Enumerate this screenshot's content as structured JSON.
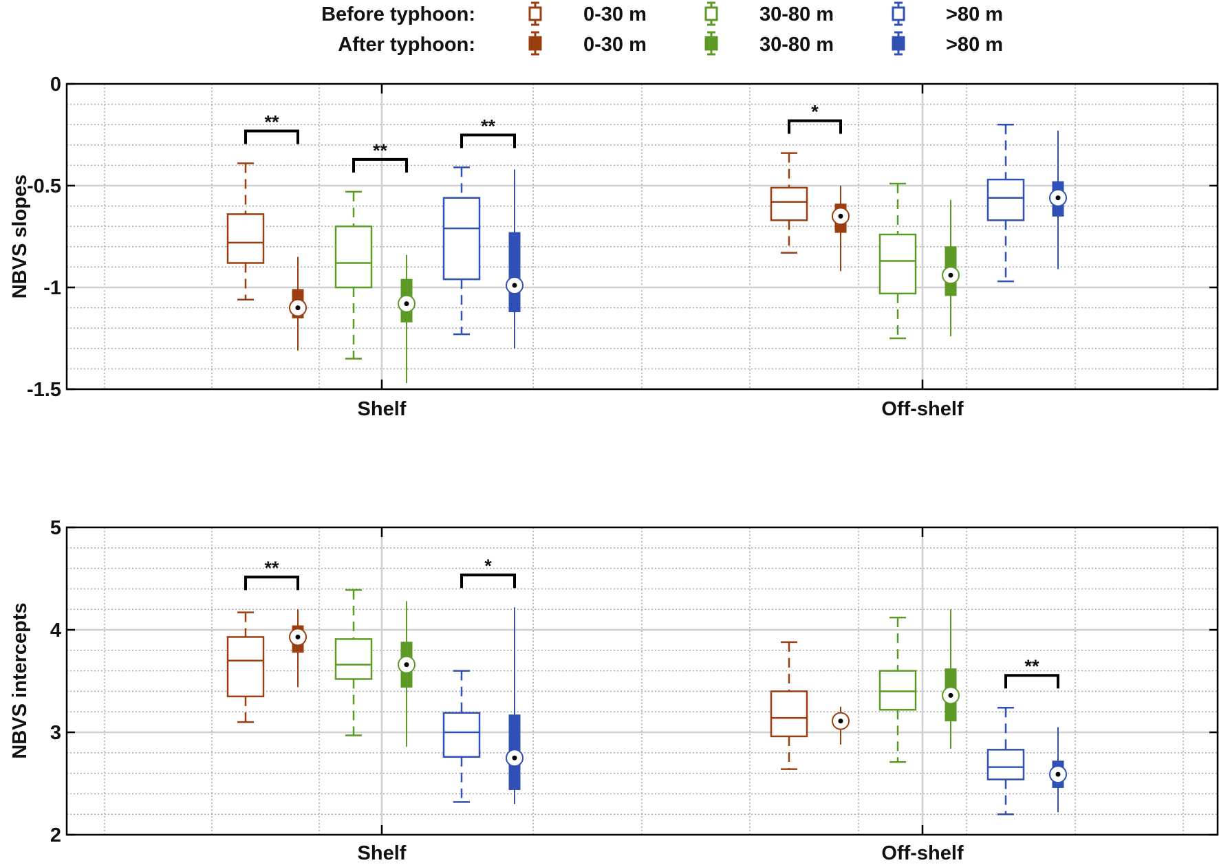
{
  "colors": {
    "d0_30": "#9a3e10",
    "d30_80": "#5c9a25",
    "d80": "#3150b5",
    "axis": "#000000",
    "grid_major": "#cfcfcf",
    "grid_minor": "#a8a8a8",
    "bracket": "#000000"
  },
  "legend": {
    "before_label": "Before typhoon:",
    "after_label": "After typhoon:",
    "items": [
      {
        "key": "d0_30",
        "label": "0-30 m"
      },
      {
        "key": "d30_80",
        "label": "30-80 m"
      },
      {
        "key": "d80",
        "label": ">80 m"
      }
    ]
  },
  "chart_data": [
    {
      "type": "box",
      "name": "slopes",
      "ylabel": "NBVS slopes",
      "ylim": [
        -1.5,
        0
      ],
      "yticks": [
        0,
        -0.5,
        -1,
        -1.5
      ],
      "ytick_labels": [
        "0",
        "-0.5",
        "-1",
        "-1.5"
      ],
      "categories": [
        "Shelf",
        "Off-shelf"
      ],
      "groups": [
        {
          "region": "Shelf",
          "depth": "0-30 m",
          "period": "Before typhoon",
          "color": "d0_30",
          "whisker_low": -1.06,
          "q1": -0.88,
          "median": -0.78,
          "q3": -0.64,
          "whisker_high": -0.39
        },
        {
          "region": "Shelf",
          "depth": "0-30 m",
          "period": "After typhoon",
          "color": "d0_30",
          "whisker_low": -1.31,
          "q1": -1.15,
          "median": -1.1,
          "q3": -1.01,
          "whisker_high": -0.85
        },
        {
          "region": "Shelf",
          "depth": "30-80 m",
          "period": "Before typhoon",
          "color": "d30_80",
          "whisker_low": -1.35,
          "q1": -1.0,
          "median": -0.88,
          "q3": -0.7,
          "whisker_high": -0.53
        },
        {
          "region": "Shelf",
          "depth": "30-80 m",
          "period": "After typhoon",
          "color": "d30_80",
          "whisker_low": -1.47,
          "q1": -1.17,
          "median": -1.08,
          "q3": -0.96,
          "whisker_high": -0.84
        },
        {
          "region": "Shelf",
          "depth": ">80 m",
          "period": "Before typhoon",
          "color": "d80",
          "whisker_low": -1.23,
          "q1": -0.96,
          "median": -0.71,
          "q3": -0.56,
          "whisker_high": -0.41
        },
        {
          "region": "Shelf",
          "depth": ">80 m",
          "period": "After typhoon",
          "color": "d80",
          "whisker_low": -1.3,
          "q1": -1.12,
          "median": -0.99,
          "q3": -0.73,
          "whisker_high": -0.42
        },
        {
          "region": "Off-shelf",
          "depth": "0-30 m",
          "period": "Before typhoon",
          "color": "d0_30",
          "whisker_low": -0.83,
          "q1": -0.67,
          "median": -0.58,
          "q3": -0.51,
          "whisker_high": -0.34
        },
        {
          "region": "Off-shelf",
          "depth": "0-30 m",
          "period": "After typhoon",
          "color": "d0_30",
          "whisker_low": -0.92,
          "q1": -0.73,
          "median": -0.65,
          "q3": -0.59,
          "whisker_high": -0.5
        },
        {
          "region": "Off-shelf",
          "depth": "30-80 m",
          "period": "Before typhoon",
          "color": "d30_80",
          "whisker_low": -1.25,
          "q1": -1.03,
          "median": -0.87,
          "q3": -0.74,
          "whisker_high": -0.49
        },
        {
          "region": "Off-shelf",
          "depth": "30-80 m",
          "period": "After typhoon",
          "color": "d30_80",
          "whisker_low": -1.24,
          "q1": -1.04,
          "median": -0.94,
          "q3": -0.8,
          "whisker_high": -0.57
        },
        {
          "region": "Off-shelf",
          "depth": ">80 m",
          "period": "Before typhoon",
          "color": "d80",
          "whisker_low": -0.97,
          "q1": -0.67,
          "median": -0.56,
          "q3": -0.47,
          "whisker_high": -0.2
        },
        {
          "region": "Off-shelf",
          "depth": ">80 m",
          "period": "After typhoon",
          "color": "d80",
          "whisker_low": -0.91,
          "q1": -0.65,
          "median": -0.56,
          "q3": -0.48,
          "whisker_high": -0.23
        }
      ],
      "significance": [
        {
          "from": 0,
          "to": 1,
          "label": "**"
        },
        {
          "from": 2,
          "to": 3,
          "label": "**"
        },
        {
          "from": 4,
          "to": 5,
          "label": "**"
        },
        {
          "from": 6,
          "to": 7,
          "label": "*"
        }
      ]
    },
    {
      "type": "box",
      "name": "intercepts",
      "ylabel": "NBVS intercepts",
      "ylim": [
        2,
        5
      ],
      "yticks": [
        5,
        4,
        3,
        2
      ],
      "ytick_labels": [
        "5",
        "4",
        "3",
        "2"
      ],
      "categories": [
        "Shelf",
        "Off-shelf"
      ],
      "groups": [
        {
          "region": "Shelf",
          "depth": "0-30 m",
          "period": "Before typhoon",
          "color": "d0_30",
          "whisker_low": 3.1,
          "q1": 3.35,
          "median": 3.7,
          "q3": 3.93,
          "whisker_high": 4.17
        },
        {
          "region": "Shelf",
          "depth": "0-30 m",
          "period": "After typhoon",
          "color": "d0_30",
          "whisker_low": 3.44,
          "q1": 3.78,
          "median": 3.93,
          "q3": 4.04,
          "whisker_high": 4.2
        },
        {
          "region": "Shelf",
          "depth": "30-80 m",
          "period": "Before typhoon",
          "color": "d30_80",
          "whisker_low": 2.97,
          "q1": 3.52,
          "median": 3.66,
          "q3": 3.91,
          "whisker_high": 4.39
        },
        {
          "region": "Shelf",
          "depth": "30-80 m",
          "period": "After typhoon",
          "color": "d30_80",
          "whisker_low": 2.86,
          "q1": 3.44,
          "median": 3.66,
          "q3": 3.88,
          "whisker_high": 4.28
        },
        {
          "region": "Shelf",
          "depth": ">80 m",
          "period": "Before typhoon",
          "color": "d80",
          "whisker_low": 2.32,
          "q1": 2.76,
          "median": 3.0,
          "q3": 3.19,
          "whisker_high": 3.6
        },
        {
          "region": "Shelf",
          "depth": ">80 m",
          "period": "After typhoon",
          "color": "d80",
          "whisker_low": 2.3,
          "q1": 2.44,
          "median": 2.75,
          "q3": 3.17,
          "whisker_high": 4.22
        },
        {
          "region": "Off-shelf",
          "depth": "0-30 m",
          "period": "Before typhoon",
          "color": "d0_30",
          "whisker_low": 2.64,
          "q1": 2.96,
          "median": 3.14,
          "q3": 3.4,
          "whisker_high": 3.88
        },
        {
          "region": "Off-shelf",
          "depth": "0-30 m",
          "period": "After typhoon",
          "color": "d0_30",
          "whisker_low": 2.88,
          "q1": 3.06,
          "median": 3.11,
          "q3": 3.17,
          "whisker_high": 3.25
        },
        {
          "region": "Off-shelf",
          "depth": "30-80 m",
          "period": "Before typhoon",
          "color": "d30_80",
          "whisker_low": 2.71,
          "q1": 3.22,
          "median": 3.4,
          "q3": 3.6,
          "whisker_high": 4.12
        },
        {
          "region": "Off-shelf",
          "depth": "30-80 m",
          "period": "After typhoon",
          "color": "d30_80",
          "whisker_low": 2.84,
          "q1": 3.11,
          "median": 3.36,
          "q3": 3.62,
          "whisker_high": 4.2
        },
        {
          "region": "Off-shelf",
          "depth": ">80 m",
          "period": "Before typhoon",
          "color": "d80",
          "whisker_low": 2.2,
          "q1": 2.54,
          "median": 2.66,
          "q3": 2.83,
          "whisker_high": 3.24
        },
        {
          "region": "Off-shelf",
          "depth": ">80 m",
          "period": "After typhoon",
          "color": "d80",
          "whisker_low": 2.22,
          "q1": 2.46,
          "median": 2.59,
          "q3": 2.72,
          "whisker_high": 3.05
        }
      ],
      "significance": [
        {
          "from": 0,
          "to": 1,
          "label": "**"
        },
        {
          "from": 4,
          "to": 5,
          "label": "*"
        },
        {
          "from": 10,
          "to": 11,
          "label": "**"
        }
      ]
    }
  ]
}
